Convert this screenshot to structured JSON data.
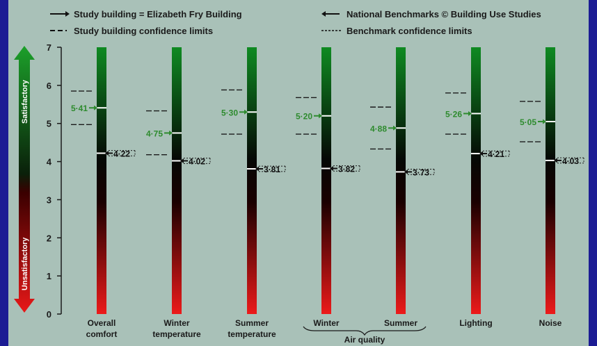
{
  "legend": {
    "study": "Study building = Elizabeth Fry Building",
    "study_ci": "Study building confidence limits",
    "benchmark": "National Benchmarks © Building Use Studies",
    "benchmark_ci": "Benchmark confidence limits"
  },
  "side_labels": {
    "top": "Satisfactory",
    "bottom": "Unsatisfactory"
  },
  "group_label": "Air quality",
  "colors": {
    "satisfactory": "#0d7a1e",
    "unsatisfactory": "#d41414",
    "study_text": "#2e8b2e"
  },
  "chart_data": {
    "type": "bar",
    "ylim": [
      0,
      7
    ],
    "yticks": [
      "0",
      "1",
      "2",
      "3",
      "4",
      "5",
      "6",
      "7"
    ],
    "categories": [
      [
        "Overall",
        "comfort"
      ],
      [
        "Winter",
        "temperature"
      ],
      [
        "Summer",
        "temperature"
      ],
      [
        "Winter"
      ],
      [
        "Summer"
      ],
      [
        "Lighting"
      ],
      [
        "Noise"
      ]
    ],
    "study_values": [
      5.41,
      4.75,
      5.3,
      5.2,
      4.88,
      5.26,
      5.05
    ],
    "study_labels": [
      "5·41",
      "4·75",
      "5·30",
      "5·20",
      "4·88",
      "5·26",
      "5·05"
    ],
    "study_ci": [
      [
        4.97,
        5.85
      ],
      [
        4.18,
        5.33
      ],
      [
        4.72,
        5.88
      ],
      [
        4.72,
        5.68
      ],
      [
        4.33,
        5.43
      ],
      [
        4.72,
        5.8
      ],
      [
        4.52,
        5.58
      ]
    ],
    "benchmark_values": [
      4.22,
      4.02,
      3.81,
      3.82,
      3.73,
      4.21,
      4.03
    ],
    "benchmark_labels": [
      "4·22",
      "4·02",
      "3·81",
      "3·82",
      "3·73",
      "4·21",
      "4·03"
    ],
    "benchmark_ci": [
      [
        4.15,
        4.29
      ],
      [
        3.95,
        4.09
      ],
      [
        3.74,
        3.88
      ],
      [
        3.75,
        3.89
      ],
      [
        3.66,
        3.8
      ],
      [
        4.14,
        4.28
      ],
      [
        3.96,
        4.1
      ]
    ]
  }
}
